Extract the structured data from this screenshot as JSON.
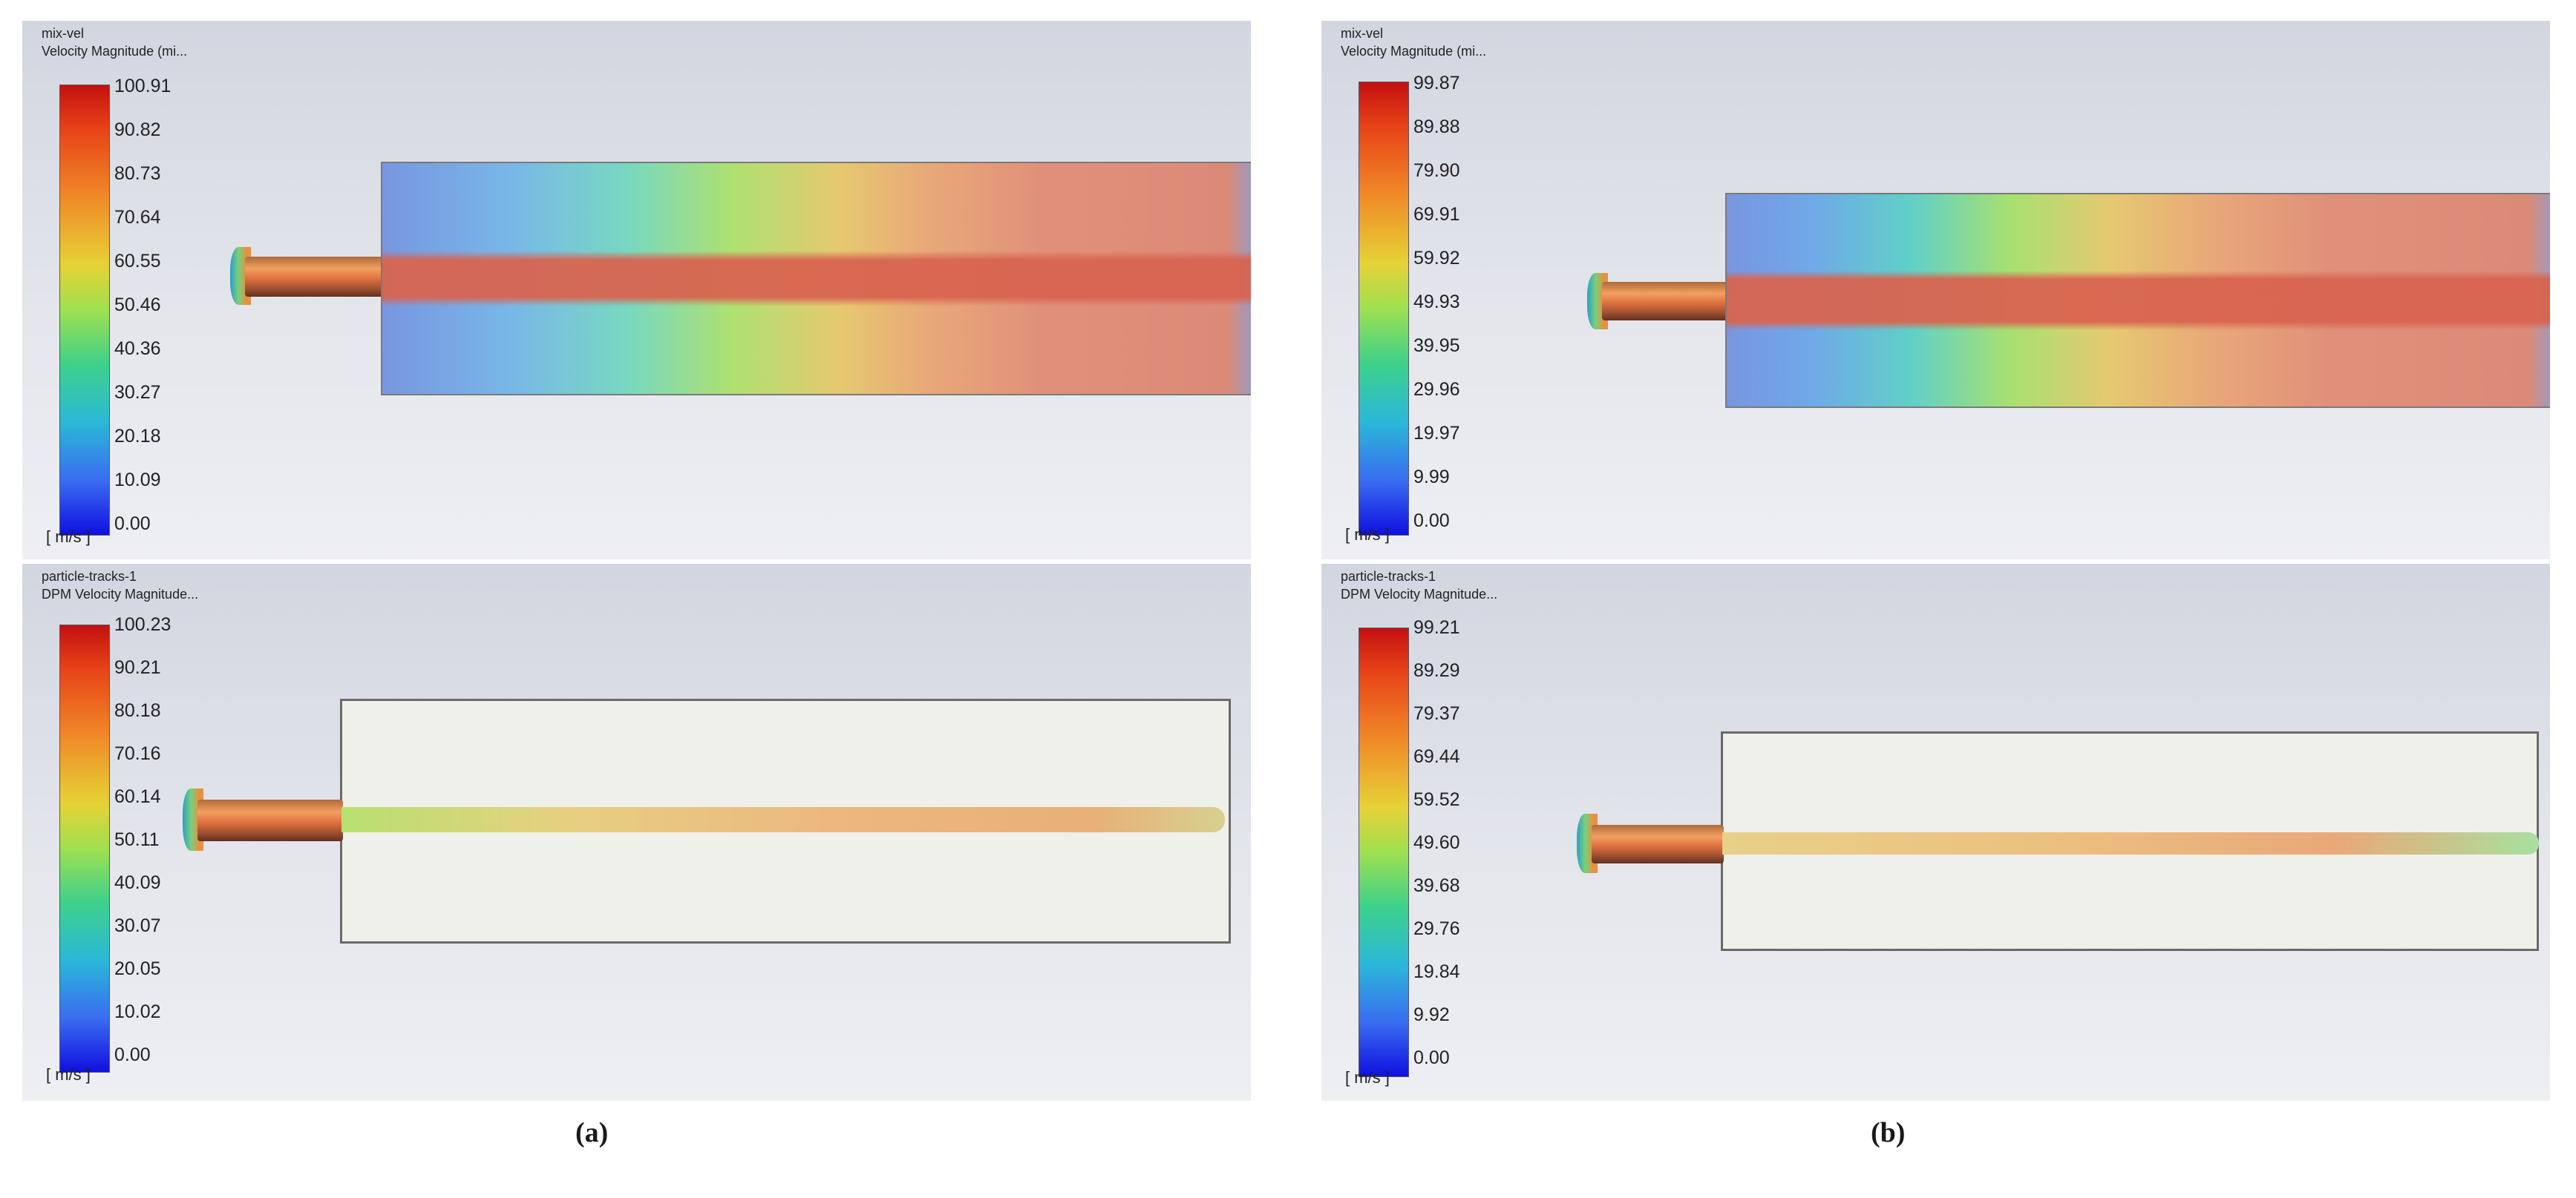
{
  "panels": {
    "a_top": {
      "title_line1": "mix-vel",
      "title_line2": "Velocity Magnitude (mi...",
      "ticks": [
        "100.91",
        "90.82",
        "80.73",
        "70.64",
        "60.55",
        "50.46",
        "40.36",
        "30.27",
        "20.18",
        "10.09",
        "0.00"
      ],
      "unit": "[ m/s ]"
    },
    "a_bottom": {
      "title_line1": "particle-tracks-1",
      "title_line2": "DPM Velocity Magnitude...",
      "ticks": [
        "100.23",
        "90.21",
        "80.18",
        "70.16",
        "60.14",
        "50.11",
        "40.09",
        "30.07",
        "20.05",
        "10.02",
        "0.00"
      ],
      "unit": "[ m/s ]"
    },
    "b_top": {
      "title_line1": "mix-vel",
      "title_line2": "Velocity Magnitude (mi...",
      "ticks": [
        "99.87",
        "89.88",
        "79.90",
        "69.91",
        "59.92",
        "49.93",
        "39.95",
        "29.96",
        "19.97",
        "9.99",
        "0.00"
      ],
      "unit": "[ m/s ]"
    },
    "b_bottom": {
      "title_line1": "particle-tracks-1",
      "title_line2": "DPM Velocity Magnitude...",
      "ticks": [
        "99.21",
        "89.29",
        "79.37",
        "69.44",
        "59.52",
        "49.60",
        "39.68",
        "29.76",
        "19.84",
        "9.92",
        "0.00"
      ],
      "unit": "[ m/s ]"
    }
  },
  "captions": {
    "a": "(a)",
    "b": "(b)"
  },
  "colors": {
    "max": "#c41010",
    "min": "#1010e0",
    "flow_core": "#d87a60"
  }
}
